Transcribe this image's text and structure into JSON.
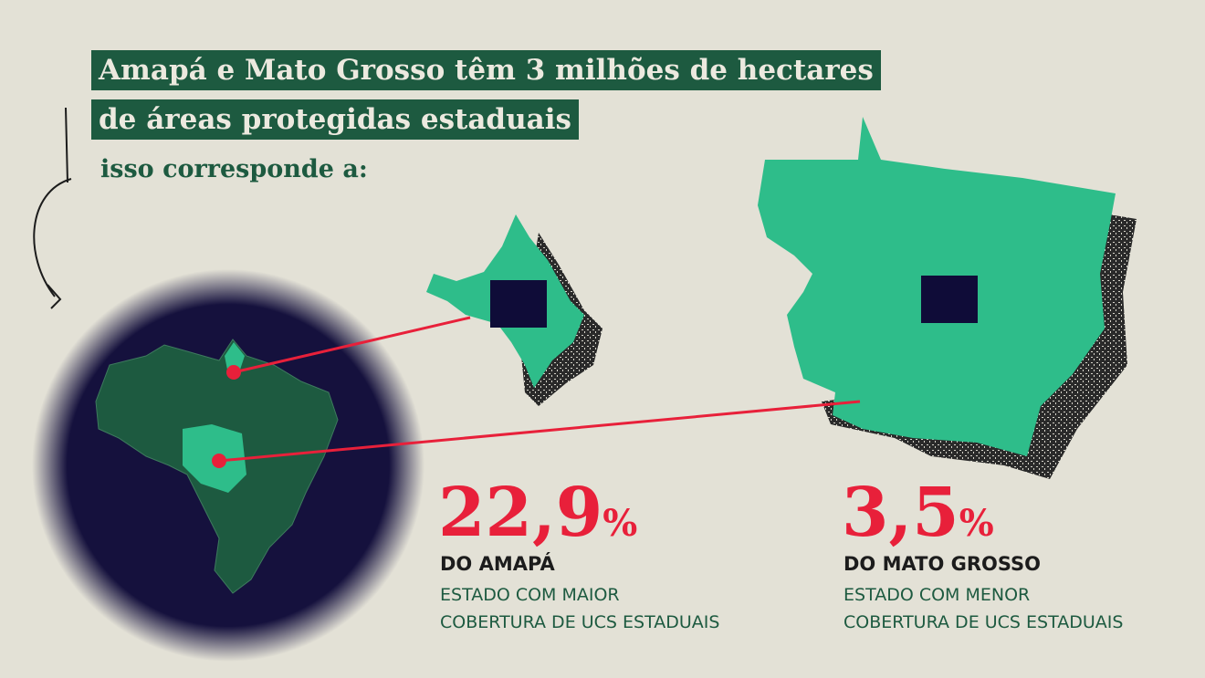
{
  "header": {
    "title_line1": "Amapá e Mato Grosso têm 3 milhões de hectares",
    "title_line2": "de áreas protegidas estaduais",
    "subtitle": "isso corresponde a:"
  },
  "stats": [
    {
      "value": "22,9",
      "unit": "%",
      "state": "DO AMAPÁ",
      "desc_line1": "ESTADO COM MAIOR",
      "desc_line2": "COBERTURA DE UCS ESTADUAIS"
    },
    {
      "value": "3,5",
      "unit": "%",
      "state": "DO MATO GROSSO",
      "desc_line1": "ESTADO COM MENOR",
      "desc_line2": "COBERTURA DE UCS ESTADUAIS"
    }
  ],
  "colors": {
    "background": "#e3e1d6",
    "dark_green": "#1d5a40",
    "state_green": "#2ebd8a",
    "protected_area_navy": "#0f0c38",
    "accent_red": "#e8203a"
  }
}
